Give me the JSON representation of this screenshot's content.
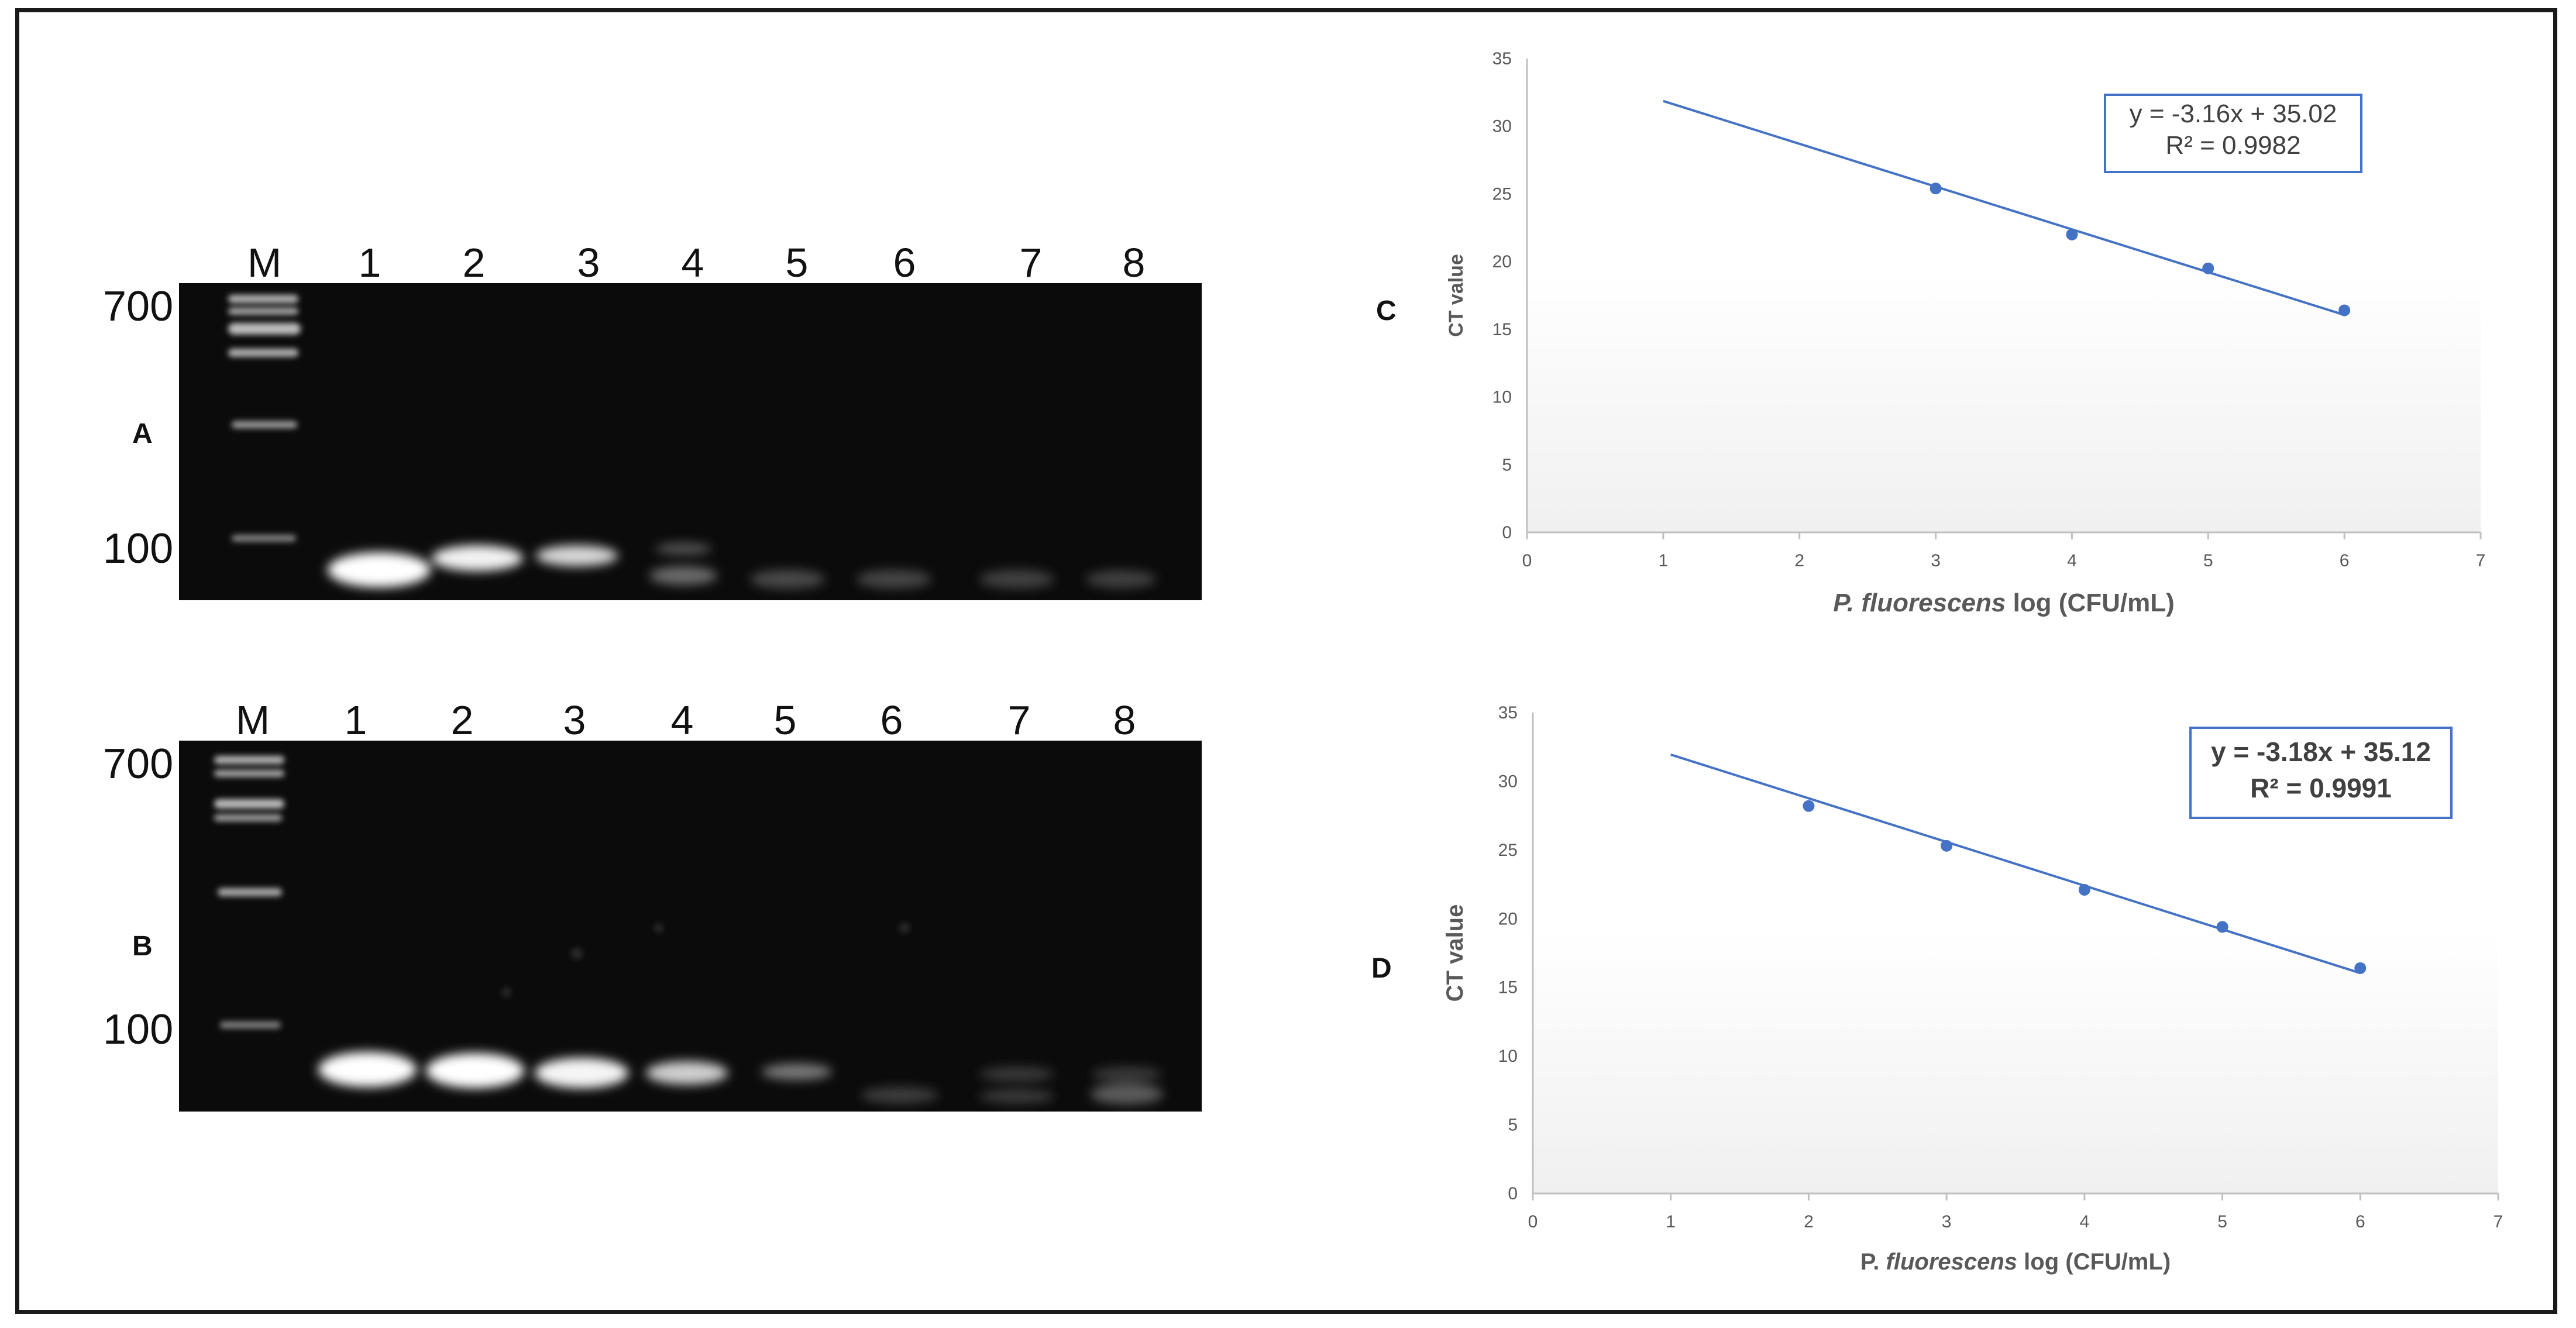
{
  "gels": [
    {
      "panel": "A",
      "lanes": [
        "M",
        "1",
        "2",
        "3",
        "4",
        "5",
        "6",
        "7",
        "8"
      ],
      "size_markers": [
        "700",
        "100"
      ]
    },
    {
      "panel": "B",
      "lanes": [
        "M",
        "1",
        "2",
        "3",
        "4",
        "5",
        "6",
        "7",
        "8"
      ],
      "size_markers": [
        "700",
        "100"
      ]
    }
  ],
  "chart_data": [
    {
      "panel": "C",
      "type": "scatter",
      "xlabel_italic": "P. fluorescens",
      "xlabel_rest": " log (CFU/mL)",
      "ylabel": "CT value",
      "xlim": [
        0,
        7
      ],
      "ylim": [
        0,
        35
      ],
      "xticks": [
        0,
        1,
        2,
        3,
        4,
        5,
        6,
        7
      ],
      "yticks": [
        0,
        5,
        10,
        15,
        20,
        25,
        30,
        35
      ],
      "points": [
        {
          "x": 3,
          "y": 25.4
        },
        {
          "x": 4,
          "y": 22.0
        },
        {
          "x": 5,
          "y": 19.5
        },
        {
          "x": 6,
          "y": 16.4
        }
      ],
      "trendline": {
        "slope": -3.16,
        "intercept": 35.02,
        "x_from": 1,
        "x_to": 6
      },
      "equation": "y = -3.16x + 35.02",
      "r2": "R² = 0.9982",
      "grid": false,
      "color": "#4472C4"
    },
    {
      "panel": "D",
      "type": "scatter",
      "xlabel_italic": "fluorescens",
      "xlabel_prefix": "P. ",
      "xlabel_rest": " log (CFU/mL)",
      "ylabel": "CT value",
      "xlim": [
        0,
        7
      ],
      "ylim": [
        0,
        35
      ],
      "xticks": [
        0,
        1,
        2,
        3,
        4,
        5,
        6,
        7
      ],
      "yticks": [
        0,
        5,
        10,
        15,
        20,
        25,
        30,
        35
      ],
      "points": [
        {
          "x": 2,
          "y": 28.2
        },
        {
          "x": 3,
          "y": 25.3
        },
        {
          "x": 4,
          "y": 22.1
        },
        {
          "x": 5,
          "y": 19.4
        },
        {
          "x": 6,
          "y": 16.4
        }
      ],
      "trendline": {
        "slope": -3.18,
        "intercept": 35.12,
        "x_from": 1,
        "x_to": 6
      },
      "equation": "y = -3.18x + 35.12",
      "r2": "R² = 0.9991",
      "grid": false,
      "color": "#4472C4"
    }
  ]
}
